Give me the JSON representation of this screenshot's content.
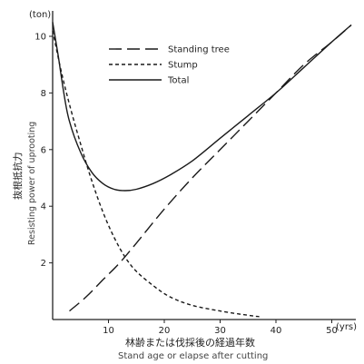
{
  "chart_data": {
    "type": "line",
    "xlabel_jp": "林齢または伐採後の経過年数",
    "xlabel_en": "Stand age or elapse after cutting",
    "ylabel_jp": "抜根抵抗力",
    "ylabel_en": "Resisting power of uprooting",
    "y_unit": "(ton)",
    "x_unit": "(yrs)",
    "xlim": [
      0,
      55
    ],
    "ylim": [
      0,
      10.7
    ],
    "x_ticks": [
      10,
      20,
      30,
      40,
      50
    ],
    "y_ticks": [
      2,
      4,
      6,
      8,
      10
    ],
    "legend_position": "top-center",
    "series": [
      {
        "name": "Standing tree",
        "style": "long-dash",
        "points": [
          [
            3,
            0.3
          ],
          [
            6,
            0.8
          ],
          [
            9,
            1.4
          ],
          [
            12,
            2.0
          ],
          [
            15,
            2.7
          ],
          [
            20,
            3.9
          ],
          [
            25,
            5.0
          ],
          [
            30,
            6.0
          ],
          [
            35,
            7.0
          ],
          [
            40,
            8.0
          ],
          [
            45,
            9.0
          ],
          [
            50,
            9.8
          ],
          [
            53.5,
            10.4
          ]
        ]
      },
      {
        "name": "Stump",
        "style": "short-dash",
        "points": [
          [
            0,
            10.2
          ],
          [
            1.5,
            8.8
          ],
          [
            3,
            7.6
          ],
          [
            5,
            6.2
          ],
          [
            7,
            4.9
          ],
          [
            9,
            3.8
          ],
          [
            11,
            2.9
          ],
          [
            13,
            2.2
          ],
          [
            15,
            1.7
          ],
          [
            18,
            1.2
          ],
          [
            21,
            0.8
          ],
          [
            25,
            0.5
          ],
          [
            30,
            0.3
          ],
          [
            35,
            0.15
          ],
          [
            37,
            0.1
          ]
        ]
      },
      {
        "name": "Total",
        "style": "solid",
        "points": [
          [
            0,
            10.5
          ],
          [
            1,
            9.3
          ],
          [
            2,
            8.0
          ],
          [
            3,
            7.0
          ],
          [
            5,
            5.9
          ],
          [
            7,
            5.2
          ],
          [
            9,
            4.8
          ],
          [
            11,
            4.6
          ],
          [
            13,
            4.55
          ],
          [
            15,
            4.6
          ],
          [
            18,
            4.8
          ],
          [
            21,
            5.1
          ],
          [
            25,
            5.6
          ],
          [
            30,
            6.4
          ],
          [
            35,
            7.2
          ],
          [
            40,
            8.0
          ],
          [
            45,
            8.9
          ],
          [
            50,
            9.8
          ],
          [
            53.5,
            10.4
          ]
        ]
      }
    ]
  }
}
